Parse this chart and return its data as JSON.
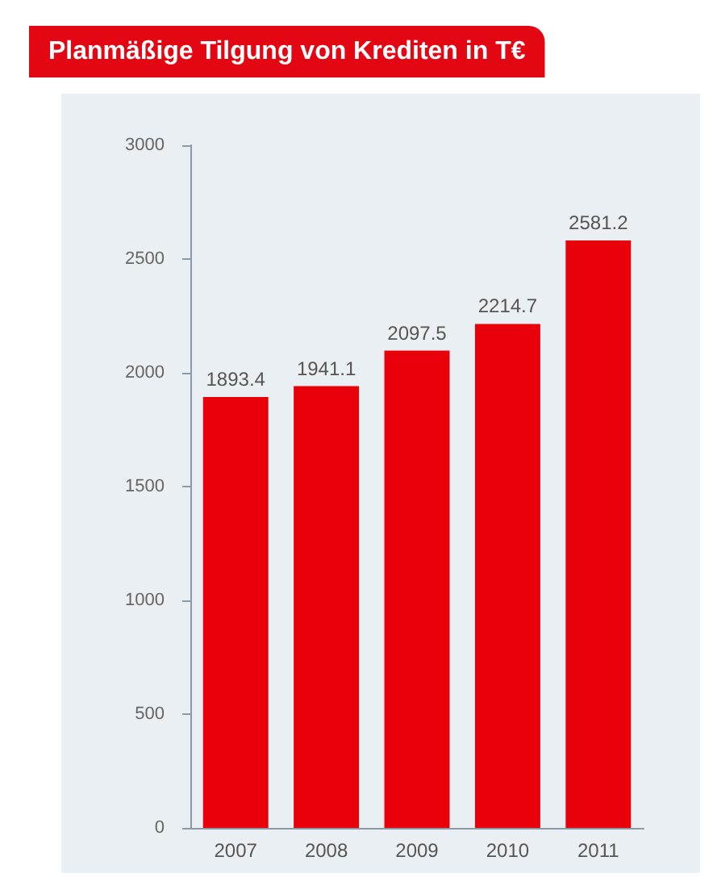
{
  "chart_data": {
    "type": "bar",
    "title": "Planmäßige Tilgung von Krediten in T€",
    "categories": [
      "2007",
      "2008",
      "2009",
      "2010",
      "2011"
    ],
    "values": [
      1893.4,
      1941.1,
      2097.5,
      2214.7,
      2581.2
    ],
    "color": "#e8000b",
    "ylim": [
      0,
      3000
    ],
    "yticks": [
      0,
      500,
      1000,
      1500,
      2000,
      2500,
      3000
    ],
    "data_labels": true
  }
}
